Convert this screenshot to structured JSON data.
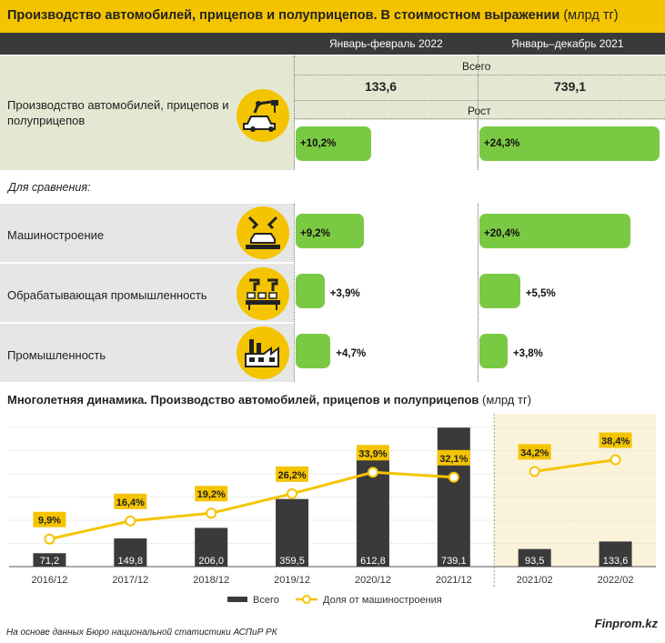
{
  "title": {
    "main": "Производство автомобилей, прицепов и полуприцепов. В стоимостном выражении",
    "unit": "(млрд тг)"
  },
  "periods": {
    "p1": "Январь-февраль 2022",
    "p2": "Январь–декабрь 2021"
  },
  "main_block": {
    "label": "Производство автомобилей, прицепов и полуприцепов",
    "total_caption": "Всего",
    "total_p1": "133,6",
    "total_p2": "739,1",
    "growth_caption": "Рост",
    "growth_p1": "+10,2%",
    "growth_p2": "+24,3%",
    "growth_p1_value": 10.2,
    "growth_p2_value": 24.3
  },
  "compare_caption": "Для сравнения:",
  "compare_rows": [
    {
      "label": "Машиностроение",
      "p1": "+9,2%",
      "p1_value": 9.2,
      "p2": "+20,4%",
      "p2_value": 20.4,
      "icon": "robot-arm-car-icon"
    },
    {
      "label": "Обрабатывающая промышленность",
      "p1": "+3,9%",
      "p1_value": 3.9,
      "p2": "+5,5%",
      "p2_value": 5.5,
      "icon": "conveyor-robot-icon"
    },
    {
      "label": "Промышленность",
      "p1": "+4,7%",
      "p1_value": 4.7,
      "p2": "+3,8%",
      "p2_value": 3.8,
      "icon": "factory-icon"
    }
  ],
  "chart_title": {
    "main": "Многолетняя динамика. Производство автомобилей, прицепов и полуприцепов",
    "unit": "(млрд тг)"
  },
  "chart_data": {
    "type": "bar",
    "categories": [
      "2016/12",
      "2017/12",
      "2018/12",
      "2019/12",
      "2020/12",
      "2021/12",
      "2021/02",
      "2022/02"
    ],
    "series": [
      {
        "name": "Всего",
        "type": "bar",
        "values": [
          71.2,
          149.8,
          206.0,
          359.5,
          612.8,
          739.1,
          93.5,
          133.6
        ],
        "labels": [
          "71,2",
          "149,8",
          "206,0",
          "359,5",
          "612,8",
          "739,1",
          "93,5",
          "133,6"
        ]
      },
      {
        "name": "Доля от машиностроения",
        "type": "line",
        "values": [
          9.9,
          16.4,
          19.2,
          26.2,
          33.9,
          32.1,
          34.2,
          38.4
        ],
        "labels": [
          "9,9%",
          "16,4%",
          "19,2%",
          "26,2%",
          "33,9%",
          "32,1%",
          "34,2%",
          "38,4%"
        ]
      }
    ],
    "segments": [
      [
        0,
        5
      ],
      [
        6,
        7
      ]
    ],
    "highlight_categories": [
      "2021/02",
      "2022/02"
    ],
    "bar_ylim": [
      0,
      740
    ],
    "line_ylim": [
      0,
      50
    ],
    "grid": true,
    "legend_position": "bottom"
  },
  "colors": {
    "brand_yellow": "#f5c400",
    "bar_dark": "#3a3a3a",
    "growth_green": "#7ac943",
    "row_grey": "#e6e6e6",
    "main_panel": "#e4e8d3",
    "highlight_panel": "#fbf3d9"
  },
  "footer": {
    "source": "На основе данных Бюро национальной статистики АСПиР РК",
    "brand": "Finprom.kz"
  }
}
